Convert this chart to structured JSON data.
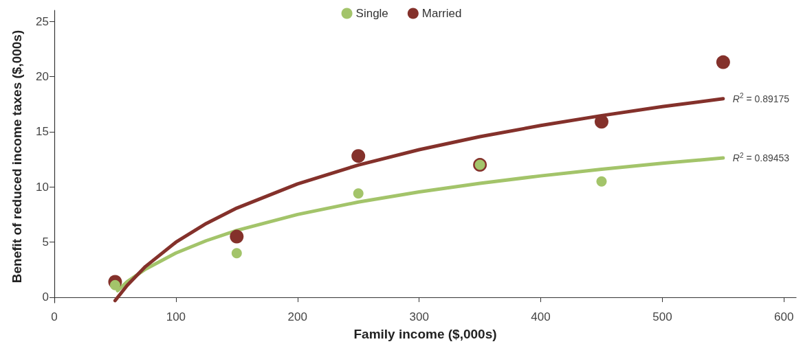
{
  "chart_data": {
    "type": "scatter",
    "xlabel": "Family income ($,000s)",
    "ylabel": "Benefit of reduced income taxes ($,000s)",
    "xlim": [
      0,
      610
    ],
    "xticks": [
      0,
      100,
      200,
      300,
      400,
      500,
      600
    ],
    "ylim": [
      -0.5,
      26
    ],
    "yticks": [
      0,
      5,
      10,
      15,
      20,
      25
    ],
    "grid": false,
    "legend": "top",
    "marker": "circle",
    "series": [
      {
        "name": "Single",
        "type": "scatter",
        "color": "#a3c46a",
        "x": [
          50,
          150,
          250,
          350,
          450
        ],
        "values": [
          1.1,
          4.0,
          9.4,
          12.0,
          10.5
        ]
      },
      {
        "name": "Married",
        "type": "scatter",
        "color": "#84312b",
        "x": [
          50,
          150,
          250,
          350,
          450,
          550
        ],
        "values": [
          1.4,
          5.5,
          12.8,
          12.0,
          15.9,
          21.3
        ]
      },
      {
        "type": "line",
        "color": "#a3c46a",
        "marker": "none",
        "x": [
          52,
          60,
          75,
          100,
          125,
          150,
          200,
          250,
          300,
          350,
          400,
          450,
          500,
          550
        ],
        "values": [
          0.6,
          1.42,
          2.55,
          4.01,
          5.13,
          6.06,
          7.5,
          8.63,
          9.55,
          10.33,
          11.0,
          11.6,
          12.14,
          12.62
        ]
      },
      {
        "type": "line",
        "color": "#84312b",
        "marker": "none",
        "x": [
          50,
          60,
          75,
          100,
          125,
          150,
          200,
          250,
          300,
          350,
          400,
          450,
          500,
          550
        ],
        "values": [
          -0.3,
          1.09,
          2.79,
          4.99,
          6.69,
          8.08,
          10.27,
          11.98,
          13.37,
          14.55,
          15.56,
          16.46,
          17.27,
          17.99
        ]
      }
    ],
    "annotations": [
      {
        "text": "R$^{2}$ = 0.89175",
        "x": 550,
        "y": 17.99
      },
      {
        "text": "R$^{2}$ = 0.89453",
        "x": 550,
        "y": 12.62
      }
    ]
  }
}
